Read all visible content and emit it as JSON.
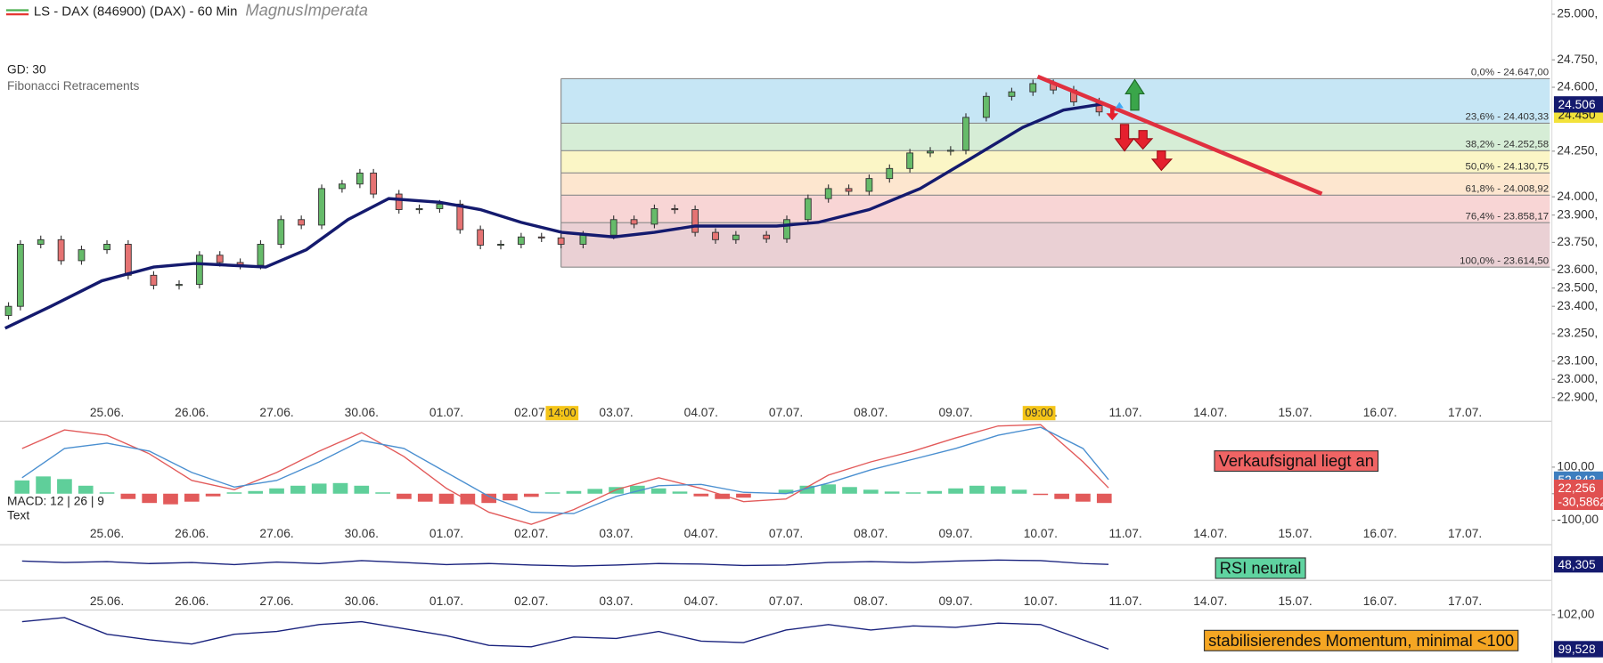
{
  "chart_data": [
    {
      "type": "candlestick",
      "title": "LS - DAX (846900) (DAX) - 60 Min",
      "subtitle": "MagnusImperata",
      "categories": [
        "25.06.",
        "26.06.",
        "27.06.",
        "30.06.",
        "01.07.",
        "02.07.",
        "03.07.",
        "04.07.",
        "07.07.",
        "08.07.",
        "09.07.",
        "10.07.",
        "11.07.",
        "14.07.",
        "15.07.",
        "16.07.",
        "17.07."
      ],
      "xlim": [
        -1.2,
        17.0
      ],
      "ylim": [
        22843,
        25078
      ],
      "yticks": [
        {
          "value": 25000,
          "label": "25.000,"
        },
        {
          "value": 24750,
          "label": "24.750,"
        },
        {
          "value": 24600,
          "label": "24.600,"
        },
        {
          "value": 24250,
          "label": "24.250,"
        },
        {
          "value": 24000,
          "label": "24.000,"
        },
        {
          "value": 23900,
          "label": "23.900,"
        },
        {
          "value": 23750,
          "label": "23.750,"
        },
        {
          "value": 23600,
          "label": "23.600,"
        },
        {
          "value": 23500,
          "label": "23.500,"
        },
        {
          "value": 23400,
          "label": "23.400,"
        },
        {
          "value": 23250,
          "label": "23.250,"
        },
        {
          "value": 23100,
          "label": "23.100,"
        },
        {
          "value": 23000,
          "label": "23.000,"
        },
        {
          "value": 22900,
          "label": "22.900,"
        }
      ],
      "time_tags": [
        {
          "value": 5.35,
          "label": "14:00"
        },
        {
          "value": 10.97,
          "label": "09:00"
        }
      ],
      "candles": {
        "up_color": "#66bb6a",
        "down_color": "#e57373",
        "x": [
          -1.16,
          -1.02,
          -0.78,
          -0.54,
          -0.3,
          0.0,
          0.25,
          0.55,
          0.85,
          1.09,
          1.33,
          1.57,
          1.81,
          2.05,
          2.29,
          2.53,
          2.77,
          2.98,
          3.14,
          3.44,
          3.68,
          3.92,
          4.16,
          4.4,
          4.64,
          4.88,
          5.12,
          5.35,
          5.61,
          5.97,
          6.21,
          6.45,
          6.69,
          6.93,
          7.17,
          7.41,
          7.77,
          8.01,
          8.26,
          8.5,
          8.74,
          8.98,
          9.22,
          9.46,
          9.7,
          9.94,
          10.12,
          10.36,
          10.66,
          10.91,
          11.15,
          11.39,
          11.69
        ],
        "open": [
          23350,
          23400,
          23740,
          23765,
          23650,
          23710,
          23740,
          23570,
          23515,
          23520,
          23680,
          23640,
          23625,
          23740,
          23875,
          23845,
          24045,
          24070,
          24130,
          24015,
          23930,
          23935,
          23960,
          23820,
          23735,
          23740,
          23780,
          23775,
          23740,
          23790,
          23875,
          23850,
          23935,
          23930,
          23805,
          23765,
          23790,
          23770,
          23875,
          23990,
          24045,
          24030,
          24100,
          24155,
          24240,
          24250,
          24255,
          24435,
          24550,
          24575,
          24620,
          24585,
          24520
        ],
        "close": [
          23400,
          23740,
          23765,
          23650,
          23710,
          23740,
          23570,
          23515,
          23520,
          23680,
          23640,
          23625,
          23740,
          23875,
          23845,
          24045,
          24070,
          24130,
          24015,
          23930,
          23935,
          23960,
          23820,
          23735,
          23740,
          23780,
          23775,
          23740,
          23790,
          23875,
          23850,
          23935,
          23930,
          23805,
          23765,
          23790,
          23770,
          23875,
          23990,
          24045,
          24030,
          24100,
          24155,
          24240,
          24250,
          24255,
          24435,
          24550,
          24575,
          24620,
          24585,
          24520,
          24465
        ]
      },
      "ma": {
        "name": "GD: 30",
        "color": "#141a6e",
        "x": [
          -1.2,
          -0.66,
          -0.06,
          0.55,
          1.03,
          1.87,
          2.35,
          2.84,
          3.32,
          3.92,
          4.4,
          4.88,
          5.36,
          5.97,
          6.45,
          6.93,
          7.41,
          7.89,
          8.38,
          8.98,
          9.58,
          10.18,
          10.79,
          11.27,
          11.75
        ],
        "values": [
          23280,
          23400,
          23540,
          23615,
          23635,
          23615,
          23710,
          23875,
          23990,
          23970,
          23930,
          23860,
          23805,
          23780,
          23805,
          23840,
          23840,
          23840,
          23860,
          23930,
          24045,
          24210,
          24380,
          24475,
          24510
        ]
      },
      "fibonacci": {
        "name": "Fibonacci Retracements",
        "x_start": 5.35,
        "colors": [
          "#c6e6f5",
          "#d6edd6",
          "#fbf6c6",
          "#fde6cf",
          "#f8d5d5",
          "#ead0d4"
        ],
        "levels": [
          {
            "value": 24647.0,
            "label": "0,0% - 24.647,00"
          },
          {
            "value": 24403.33,
            "label": "23,6% - 24.403,33"
          },
          {
            "value": 24252.58,
            "label": "38,2% - 24.252,58"
          },
          {
            "value": 24130.75,
            "label": "50,0% - 24.130,75"
          },
          {
            "value": 24008.92,
            "label": "61,8% - 24.008,92"
          },
          {
            "value": 23858.17,
            "label": "76,4% - 23.858,17"
          },
          {
            "value": 23614.5,
            "label": "100,0% - 23.614,50"
          }
        ]
      },
      "price_tags": [
        {
          "value": 24450,
          "label": "24.450",
          "color": "#f3e23a",
          "text_color": "#222"
        },
        {
          "value": 24506,
          "label": "24.506",
          "color": "#141a6e",
          "text_color": "#fff"
        }
      ]
    },
    {
      "type": "macd",
      "name": "MACD: 12 | 26 | 9",
      "text": "Text",
      "annotation": "Verkaufsignal liegt an",
      "ylim": [
        -119,
        265
      ],
      "yticks": [
        {
          "value": 100,
          "label": "100,00"
        },
        {
          "value": 0,
          "label": "0,00"
        },
        {
          "value": -100,
          "label": "-100,00"
        }
      ],
      "x": [
        -1.0,
        -0.5,
        0,
        0.5,
        1,
        1.5,
        2,
        2.5,
        3,
        3.5,
        4,
        4.5,
        5,
        5.5,
        6,
        6.5,
        7,
        7.5,
        8,
        8.5,
        9,
        9.5,
        10,
        10.5,
        11,
        11.5,
        11.8
      ],
      "series": [
        {
          "color": "#e25a5a",
          "values": [
            170,
            240,
            220,
            150,
            50,
            15,
            80,
            160,
            230,
            140,
            20,
            -70,
            -115,
            -60,
            15,
            60,
            20,
            -30,
            -20,
            70,
            120,
            160,
            210,
            255,
            260,
            120,
            22
          ]
        },
        {
          "color": "#4a8fd0",
          "values": [
            60,
            170,
            190,
            160,
            80,
            25,
            50,
            120,
            200,
            170,
            80,
            -10,
            -70,
            -75,
            -10,
            30,
            35,
            5,
            0,
            40,
            90,
            130,
            170,
            220,
            250,
            170,
            53
          ]
        }
      ],
      "histogram": {
        "pos_color": "#5fcf9a",
        "neg_color": "#e25a5a",
        "x": [
          -1.0,
          -0.75,
          -0.5,
          -0.25,
          0,
          0.25,
          0.5,
          0.75,
          1.0,
          1.25,
          1.5,
          1.75,
          2.0,
          2.25,
          2.5,
          2.75,
          3.0,
          3.25,
          3.5,
          3.75,
          4.0,
          4.25,
          4.5,
          4.75,
          5.0,
          5.25,
          5.5,
          5.75,
          6.0,
          6.25,
          6.5,
          6.75,
          7.0,
          7.25,
          7.5,
          7.75,
          8.0,
          8.25,
          8.5,
          8.75,
          9.0,
          9.25,
          9.5,
          9.75,
          10.0,
          10.25,
          10.5,
          10.75,
          11.0,
          11.25,
          11.5,
          11.75
        ],
        "values": [
          50,
          65,
          55,
          30,
          5,
          -20,
          -35,
          -40,
          -30,
          -10,
          5,
          10,
          20,
          30,
          38,
          40,
          30,
          5,
          -20,
          -30,
          -38,
          -40,
          -35,
          -25,
          -12,
          5,
          10,
          18,
          25,
          30,
          20,
          8,
          -10,
          -20,
          -15,
          0,
          15,
          30,
          35,
          25,
          15,
          8,
          5,
          10,
          20,
          30,
          28,
          15,
          -5,
          -20,
          -30,
          -35
        ]
      },
      "tags": [
        {
          "value": 52.842,
          "label": "52,842",
          "color": "#3d7ebf",
          "text_color": "#fff"
        },
        {
          "value": 22.256,
          "label": "22,256",
          "color": "#e05050",
          "text_color": "#fff"
        },
        {
          "value": -30.5862,
          "label": "-30,5862",
          "color": "#e05050",
          "text_color": "#fff"
        }
      ]
    },
    {
      "type": "rsi",
      "annotation": "RSI neutral",
      "ylim": [
        20,
        80
      ],
      "color": "#1a237e",
      "x": [
        -1.0,
        -0.5,
        0,
        0.5,
        1,
        1.5,
        2,
        2.5,
        3,
        3.5,
        4,
        4.5,
        5,
        5.5,
        6,
        6.5,
        7,
        7.5,
        8,
        8.5,
        9,
        9.5,
        10,
        10.5,
        11,
        11.5,
        11.8
      ],
      "values": [
        55,
        52,
        54,
        50,
        52,
        48,
        53,
        50,
        56,
        52,
        48,
        50,
        47,
        45,
        47,
        50,
        49,
        46,
        47,
        52,
        54,
        52,
        55,
        57,
        56,
        50,
        48.3
      ],
      "tags": [
        {
          "value": 48.305,
          "label": "48,305",
          "color": "#141a6e",
          "text_color": "#fff"
        }
      ]
    },
    {
      "type": "momentum",
      "annotation": "stabilisierendes Momentum, minimal <100",
      "ylim": [
        98.9,
        102.2
      ],
      "yticks": [
        {
          "value": 102,
          "label": "102,00"
        }
      ],
      "color": "#1a237e",
      "x": [
        -1.0,
        -0.5,
        0,
        0.5,
        1,
        1.5,
        2,
        2.5,
        3,
        3.5,
        4,
        4.5,
        5,
        5.5,
        6,
        6.5,
        7,
        7.5,
        8,
        8.5,
        9,
        9.5,
        10,
        10.5,
        11,
        11.5,
        11.8
      ],
      "values": [
        101.5,
        101.8,
        100.6,
        100.2,
        99.9,
        100.6,
        100.8,
        101.3,
        101.5,
        101.0,
        100.5,
        99.8,
        99.7,
        100.4,
        100.3,
        100.8,
        100.1,
        100.0,
        100.9,
        101.3,
        100.9,
        101.2,
        101.1,
        101.4,
        101.3,
        100.2,
        99.53
      ],
      "tags": [
        {
          "value": 99.528,
          "label": "99,528",
          "color": "#141a6e",
          "text_color": "#fff"
        }
      ]
    }
  ]
}
